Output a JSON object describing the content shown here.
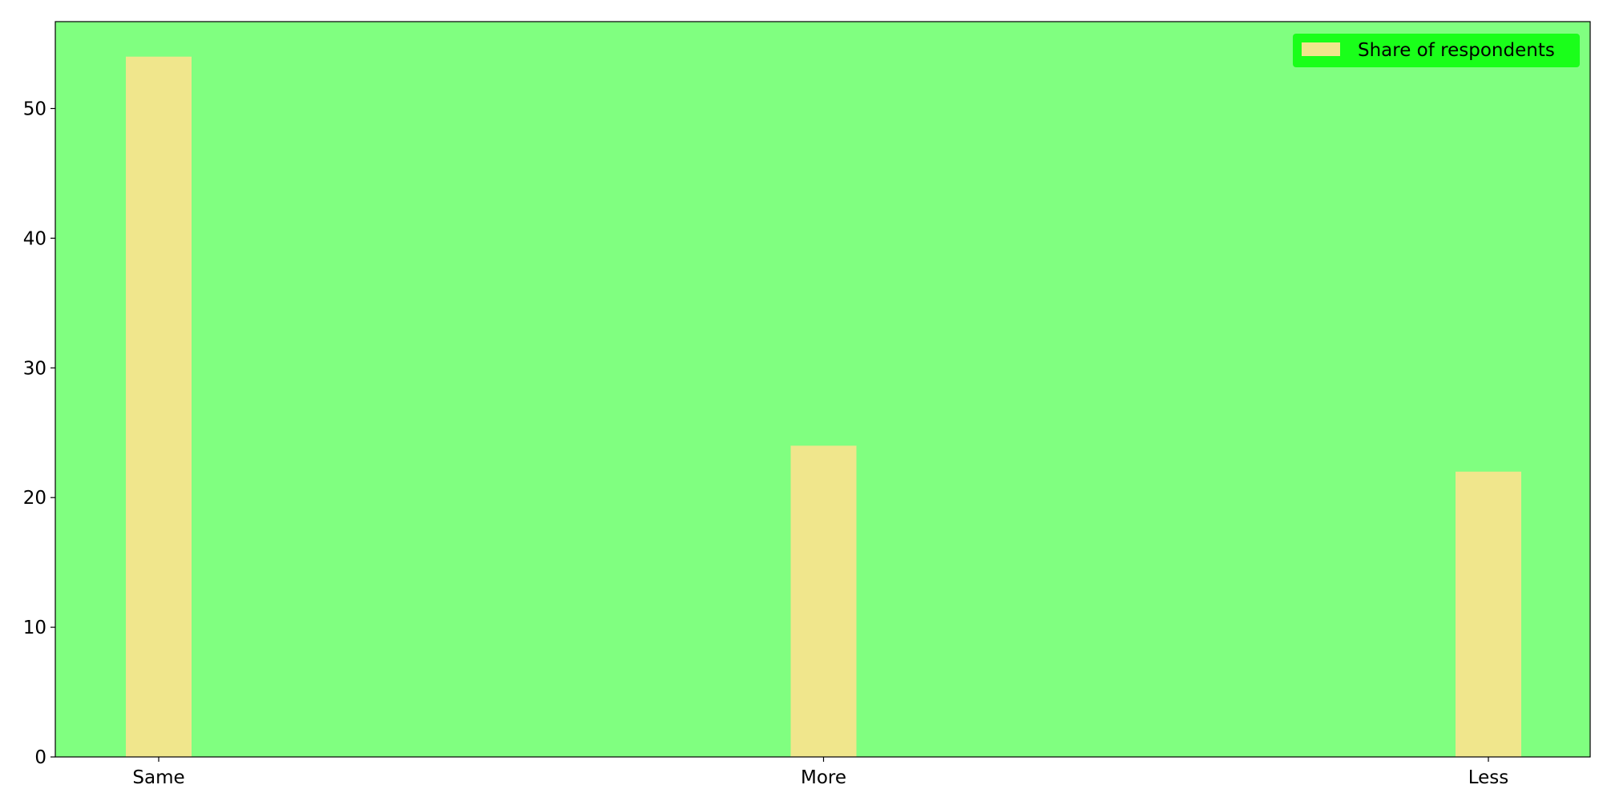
{
  "chart_data": {
    "type": "bar",
    "categories": [
      "Same",
      "More",
      "Less"
    ],
    "series": [
      {
        "name": "Share of respondents",
        "values": [
          54,
          24,
          22
        ],
        "color": "#f0e68c"
      }
    ],
    "title": "",
    "xlabel": "",
    "ylabel": "",
    "ylim": [
      0,
      56.7
    ],
    "yticks": [
      "0",
      "10",
      "20",
      "30",
      "40",
      "50"
    ],
    "grid": false,
    "legend_position": "top-right",
    "plot_background": "#80ff80",
    "legend_background": "#1aff1a"
  }
}
